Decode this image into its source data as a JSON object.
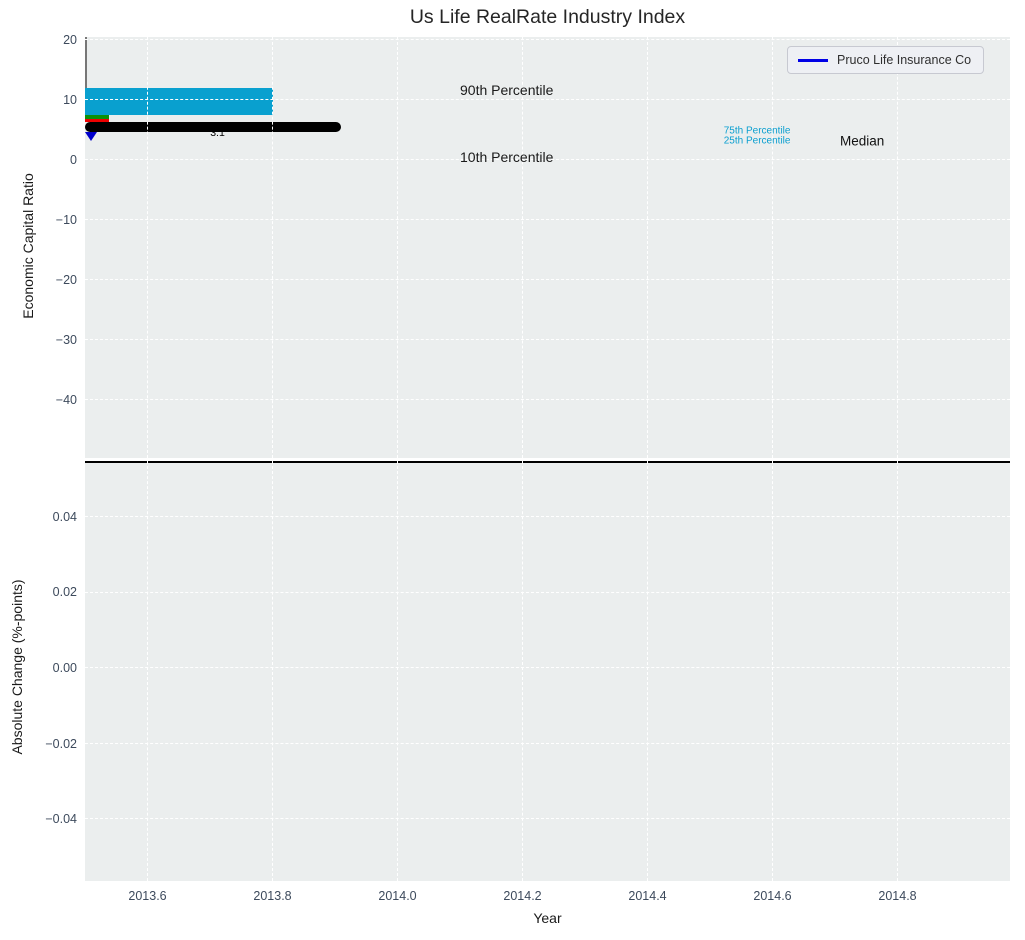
{
  "title": "Us Life RealRate Industry Index",
  "legend": {
    "label": "Pruco Life Insurance Co",
    "line_color": "#0000e6"
  },
  "colors": {
    "panel_bg": "#ebeeee",
    "grid": "#ffffff",
    "tick_label": "#3d4a5c",
    "box": "#09a0cf",
    "median_line": "#000000",
    "p90_cap": "#0a910a",
    "p10_cap": "#ee0000",
    "whisker": "#777777",
    "company_marker": "#0000cc",
    "percentile_text": "#0b9fd0",
    "zero_line": "#000000"
  },
  "chart_data": [
    {
      "type": "boxplot",
      "title": "Us Life RealRate Industry Index",
      "ylabel": "Economic Capital Ratio",
      "xlim": [
        2013.5,
        2014.98
      ],
      "ylim": [
        -49.67,
        20.5
      ],
      "yticks": [
        {
          "value": 20,
          "label": "20"
        },
        {
          "value": 10,
          "label": "10"
        },
        {
          "value": 0,
          "label": "0"
        },
        {
          "value": -10,
          "label": "−10"
        },
        {
          "value": -20,
          "label": "−20"
        },
        {
          "value": -30,
          "label": "−30"
        },
        {
          "value": -40,
          "label": "−40"
        }
      ],
      "grid": "white dashed, horizontal and vertical",
      "legend_position": "upper right",
      "box": {
        "x_range": [
          2013.85,
          2014.15
        ],
        "p90": 10.0,
        "p75": 6.3,
        "median": 3.1,
        "p25": 1.7,
        "p10": 1.55,
        "median_x_range": [
          2013.795,
          2014.205
        ],
        "median_draw_value": 3.6,
        "whisker_x": 2014.0,
        "company": {
          "name": "Pruco Life Insurance Co",
          "x": 2014.0,
          "value": 3.1,
          "marker": "triangle-down",
          "draw_y": 2.67
        }
      },
      "annotations": [
        {
          "name": "company-value",
          "text": "3.1",
          "x": 2013.712,
          "y": 4.55,
          "size": 10.5,
          "color": "#000000",
          "align": "center"
        },
        {
          "name": "90th-percentile",
          "text": "90th Percentile",
          "x": 2014.1,
          "y": 11.7,
          "size": 14,
          "color": "#1a1a1a",
          "align": "left"
        },
        {
          "name": "10th-percentile",
          "text": "10th Percentile",
          "x": 2014.1,
          "y": 0.42,
          "size": 14,
          "color": "#1a1a1a",
          "align": "left"
        },
        {
          "name": "75th-percentile",
          "text": "75th Percentile",
          "x": 2014.522,
          "y": 4.9,
          "size": 10,
          "color": "#0b9fd0",
          "align": "left"
        },
        {
          "name": "25th-percentile",
          "text": "25th Percentile",
          "x": 2014.522,
          "y": 3.15,
          "size": 10,
          "color": "#0b9fd0",
          "align": "left"
        },
        {
          "name": "median-label",
          "text": "Median",
          "x": 2014.708,
          "y": 3.2,
          "size": 13.5,
          "color": "#111111",
          "align": "left"
        }
      ]
    },
    {
      "type": "line",
      "ylabel": "Absolute Change (%-points)",
      "xlabel": "Year",
      "xlim": [
        2013.5,
        2014.98
      ],
      "ylim": [
        -0.0564,
        0.0548
      ],
      "xticks": [
        {
          "value": 2013.6,
          "label": "2013.6"
        },
        {
          "value": 2013.8,
          "label": "2013.8"
        },
        {
          "value": 2014.0,
          "label": "2014.0"
        },
        {
          "value": 2014.2,
          "label": "2014.2"
        },
        {
          "value": 2014.4,
          "label": "2014.4"
        },
        {
          "value": 2014.6,
          "label": "2014.6"
        },
        {
          "value": 2014.8,
          "label": "2014.8"
        }
      ],
      "yticks": [
        {
          "value": 0.04,
          "label": "0.04"
        },
        {
          "value": 0.02,
          "label": "0.02"
        },
        {
          "value": 0.0,
          "label": "0.00"
        },
        {
          "value": -0.02,
          "label": "−0.02"
        },
        {
          "value": -0.04,
          "label": "−0.04"
        }
      ],
      "zero_line": 0.0,
      "grid": "white dashed, horizontal and vertical"
    }
  ]
}
